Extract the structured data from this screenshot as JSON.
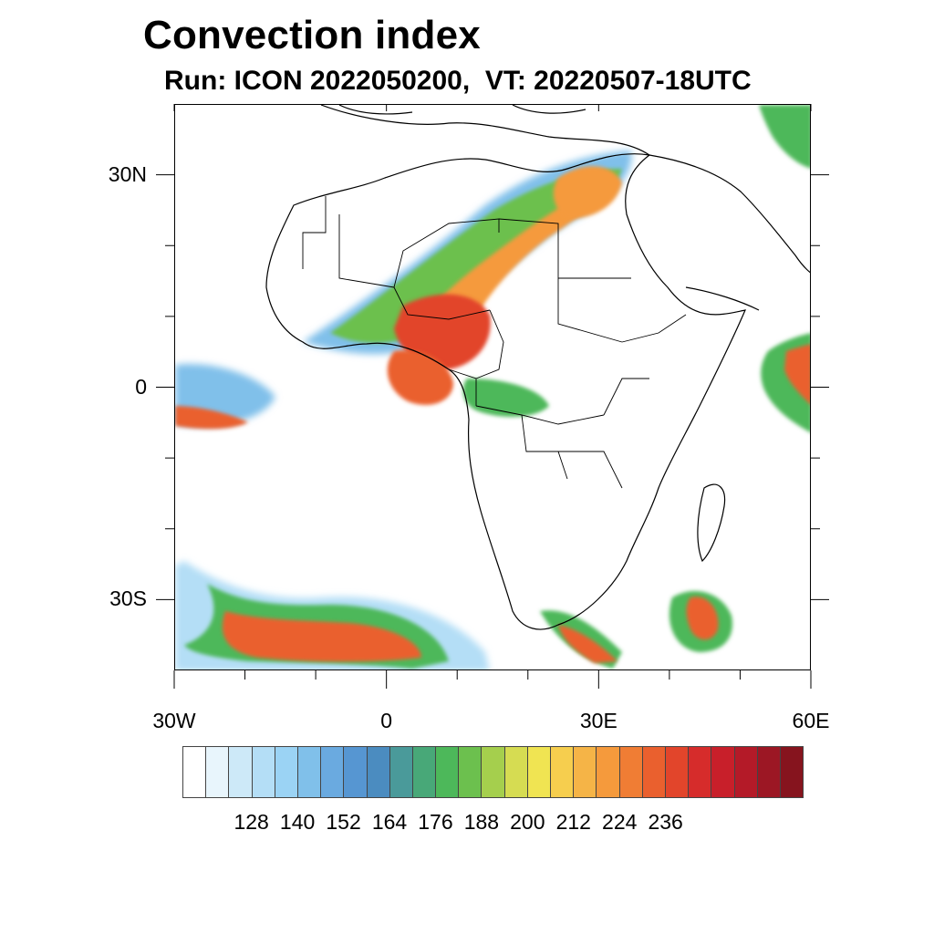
{
  "title": "Convection index",
  "subtitle": "Run: ICON 2022050200,  VT: 20220507-18UTC",
  "map": {
    "lon_range": [
      -30,
      60
    ],
    "lat_range": [
      -40,
      40
    ],
    "x_ticks": [
      {
        "lon": -30,
        "label": "30W"
      },
      {
        "lon": 0,
        "label": "0"
      },
      {
        "lon": 30,
        "label": "30E"
      },
      {
        "lon": 60,
        "label": "60E"
      }
    ],
    "y_ticks": [
      {
        "lat": 30,
        "label": "30N"
      },
      {
        "lat": 0,
        "label": "0"
      },
      {
        "lat": -30,
        "label": "30S"
      }
    ],
    "minor_lon_ticks": [
      -20,
      -10,
      10,
      20,
      40,
      50
    ],
    "minor_lat_ticks": [
      20,
      10,
      -10,
      -20
    ]
  },
  "colorbar": {
    "colors": [
      "#ffffff",
      "#e8f5fc",
      "#cde9f8",
      "#b4def6",
      "#9bd3f4",
      "#80c0ea",
      "#6aaae0",
      "#5696d2",
      "#4b8cc0",
      "#4a9a9a",
      "#48a878",
      "#4db85a",
      "#6cc04e",
      "#a5cf4d",
      "#d6dc52",
      "#f0e452",
      "#f6ce4e",
      "#f5b447",
      "#f59a3c",
      "#f07d34",
      "#ea602e",
      "#e2452b",
      "#d62c2b",
      "#c81f2a",
      "#b41a28",
      "#9c1724",
      "#86141e"
    ],
    "labels": [
      "128",
      "140",
      "152",
      "164",
      "176",
      "188",
      "200",
      "212",
      "224",
      "236"
    ]
  }
}
